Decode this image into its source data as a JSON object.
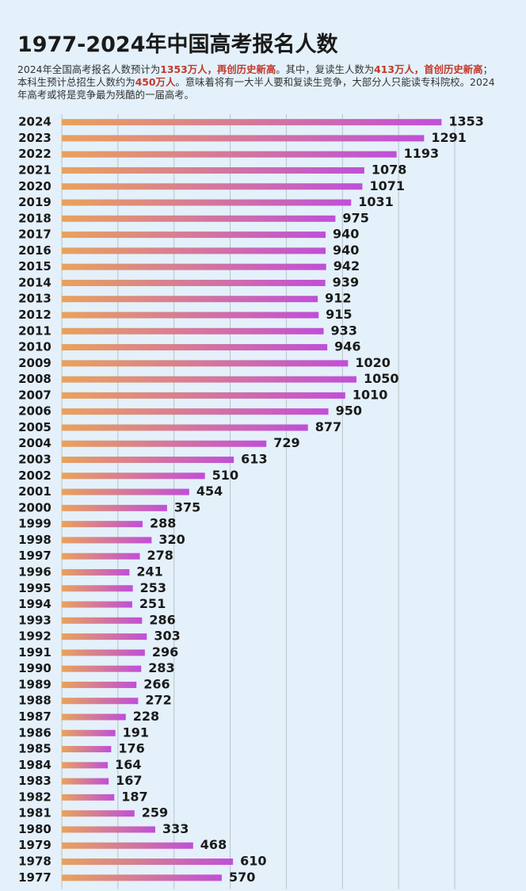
{
  "chart_data": {
    "type": "bar",
    "orientation": "horizontal",
    "title": "1977-2024年中国高考报名人数",
    "subtitle": [
      {
        "text": "2024年全国高考报名人数预计为"
      },
      {
        "text": "1353万人，再创历史新高",
        "color": "#c0392b"
      },
      {
        "text": "。其中，复读生人数为"
      },
      {
        "text": "413万人，首创历史新高",
        "color": "#c0392b"
      },
      {
        "text": "；本科生预计总招生人数约为"
      },
      {
        "text": "450万人",
        "color": "#c0392b"
      },
      {
        "text": "。意味着将有一大半人要和复读生竞争，大部分人只能读专科院校。2024年高考或将是竞争最为残酷的一届高考。"
      }
    ],
    "categories": [
      "2024",
      "2023",
      "2022",
      "2021",
      "2020",
      "2019",
      "2018",
      "2017",
      "2016",
      "2015",
      "2014",
      "2013",
      "2012",
      "2011",
      "2010",
      "2009",
      "2008",
      "2007",
      "2006",
      "2005",
      "2004",
      "2003",
      "2002",
      "2001",
      "2000",
      "1999",
      "1998",
      "1997",
      "1996",
      "1995",
      "1994",
      "1993",
      "1992",
      "1991",
      "1990",
      "1989",
      "1988",
      "1987",
      "1986",
      "1985",
      "1984",
      "1983",
      "1982",
      "1981",
      "1980",
      "1979",
      "1978",
      "1977"
    ],
    "values": [
      1353,
      1291,
      1193,
      1078,
      1071,
      1031,
      975,
      940,
      940,
      942,
      939,
      912,
      915,
      933,
      946,
      1020,
      1050,
      1010,
      950,
      877,
      729,
      613,
      510,
      454,
      375,
      288,
      320,
      278,
      241,
      253,
      251,
      286,
      303,
      296,
      283,
      266,
      272,
      228,
      191,
      176,
      164,
      167,
      187,
      259,
      333,
      468,
      610,
      570
    ],
    "color_start": "#e9a25c",
    "color_end": "#c04fd8",
    "xlim": [
      0,
      1400
    ],
    "xticks": [
      0,
      200,
      400,
      600,
      800,
      1000,
      1200,
      1400
    ],
    "grid": true
  }
}
